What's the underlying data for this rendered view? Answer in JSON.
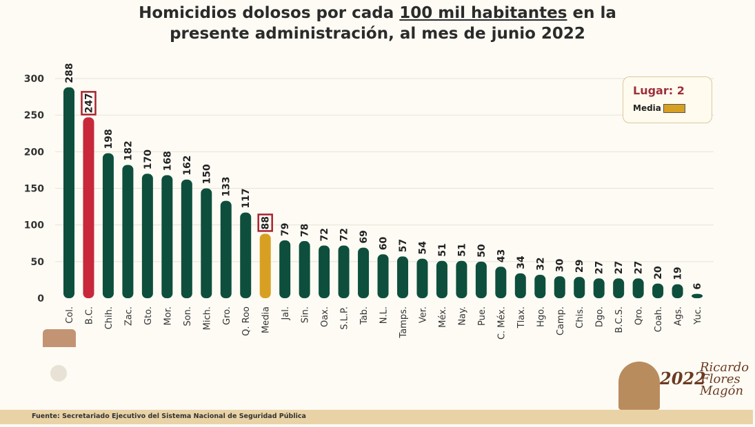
{
  "title": {
    "line1_pre": "Homicidios dolosos por cada ",
    "line1_underlined": "100 mil habitantes",
    "line1_post": " en la",
    "line2": "presente administración, al mes de junio 2022"
  },
  "legend": {
    "rank": "Lugar: 2",
    "media_label": "Media",
    "media_color": "#d7a022"
  },
  "footer": {
    "source": "Fuente: Secretariado Ejecutivo del Sistema Nacional de Seguridad Pública"
  },
  "logo": {
    "year": "2022",
    "name": "Ricardo Flores Magón"
  },
  "chart_data": {
    "type": "bar",
    "title": "Homicidios dolosos por cada 100 mil habitantes en la presente administración, al mes de junio 2022",
    "categories": [
      "Col.",
      "B.C.",
      "Chih.",
      "Zac.",
      "Gto.",
      "Mor.",
      "Son.",
      "Mich.",
      "Gro.",
      "Q. Roo",
      "Media",
      "Jal.",
      "Sin.",
      "Oax.",
      "S.L.P.",
      "Tab.",
      "N.L.",
      "Tamps.",
      "Ver.",
      "Méx.",
      "Nay.",
      "Pue.",
      "C. Méx.",
      "Tlax.",
      "Hgo.",
      "Camp.",
      "Chis.",
      "Dgo.",
      "B.C.S.",
      "Qro.",
      "Coah.",
      "Ags.",
      "Yuc."
    ],
    "values": [
      288,
      247,
      198,
      182,
      170,
      168,
      162,
      150,
      133,
      117,
      88,
      79,
      78,
      72,
      72,
      69,
      60,
      57,
      54,
      51,
      51,
      50,
      43,
      34,
      32,
      30,
      29,
      27,
      27,
      27,
      20,
      19,
      6
    ],
    "highlighted": [
      "B.C.",
      "Media"
    ],
    "colors": {
      "default": "#0d4f3c",
      "highlight": "#c8283a",
      "media": "#d7a022",
      "box": "#a8232f"
    },
    "yticks": [
      0,
      50,
      100,
      150,
      200,
      250,
      300
    ],
    "ylim": [
      0,
      300
    ],
    "grid": true
  }
}
